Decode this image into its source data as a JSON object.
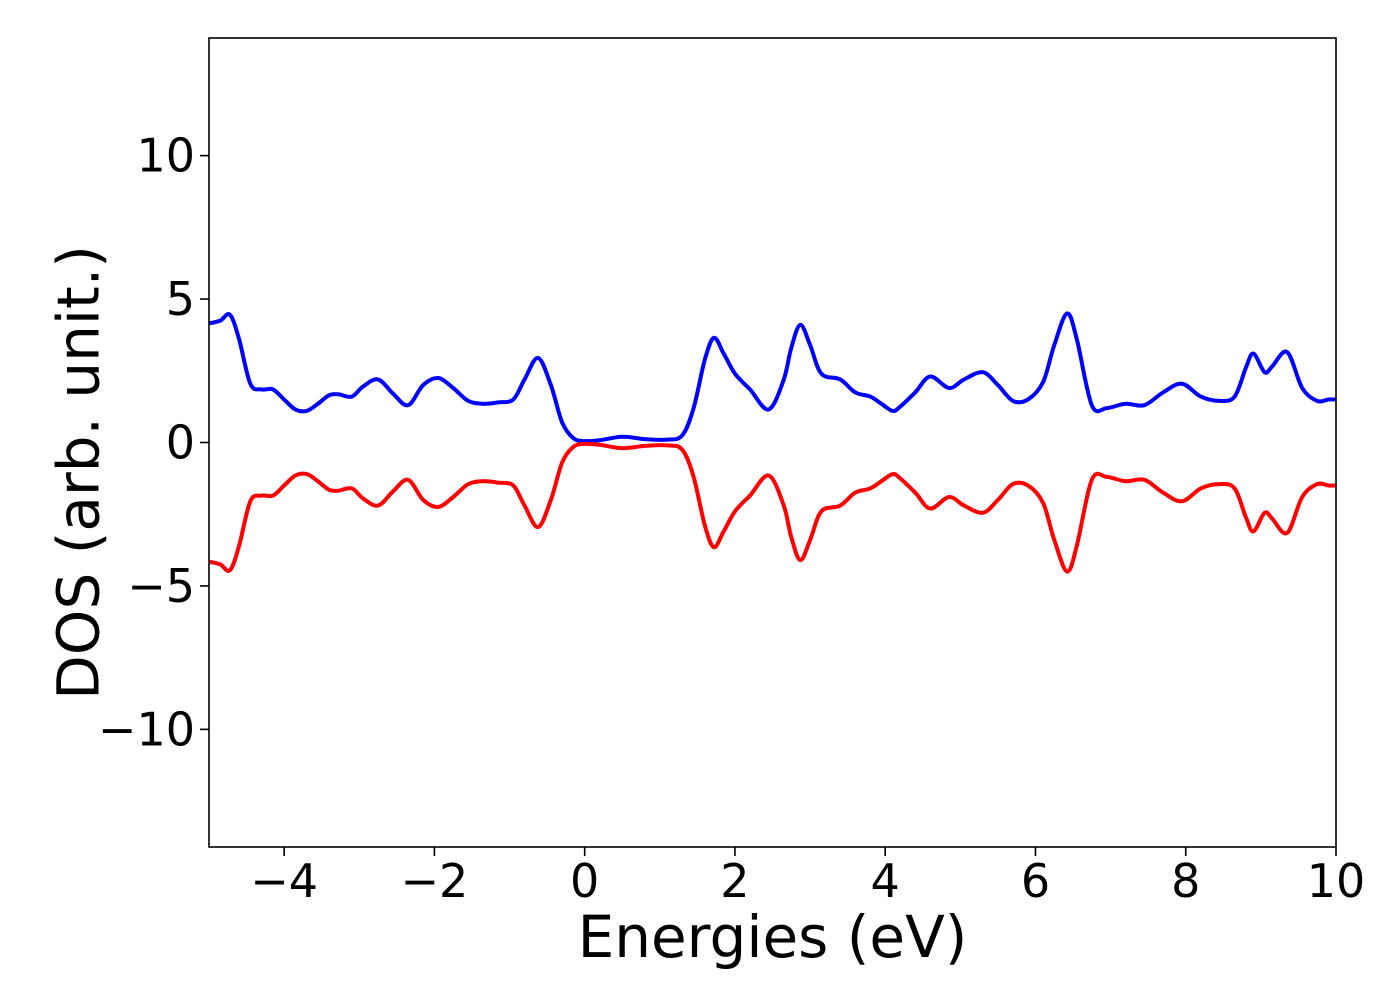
{
  "chart_data": {
    "type": "line",
    "title": "",
    "xlabel": "Energies (eV)",
    "ylabel": "DOS (arb. unit.)",
    "xlim": [
      -5,
      10
    ],
    "ylim": [
      -14.1,
      14.1
    ],
    "grid": false,
    "legend": "none",
    "xticks": [
      -4,
      -2,
      0,
      2,
      4,
      6,
      8,
      10
    ],
    "xtick_labels": [
      "−4",
      "−2",
      "0",
      "2",
      "4",
      "6",
      "8",
      "10"
    ],
    "yticks": [
      -10,
      -5,
      0,
      5,
      10
    ],
    "ytick_labels": [
      "−10",
      "−5",
      "0",
      "5",
      "10"
    ],
    "series": [
      {
        "color": "#0000ff",
        "x": [
          -5.0,
          -4.85,
          -4.72,
          -4.6,
          -4.45,
          -4.3,
          -4.15,
          -4.0,
          -3.85,
          -3.7,
          -3.55,
          -3.4,
          -3.28,
          -3.1,
          -2.95,
          -2.75,
          -2.55,
          -2.35,
          -2.15,
          -1.95,
          -1.75,
          -1.55,
          -1.35,
          -1.15,
          -0.95,
          -0.8,
          -0.62,
          -0.45,
          -0.3,
          -0.15,
          0.0,
          0.2,
          0.5,
          0.8,
          1.1,
          1.3,
          1.45,
          1.6,
          1.72,
          1.85,
          2.0,
          2.2,
          2.45,
          2.65,
          2.75,
          2.87,
          3.0,
          3.15,
          3.4,
          3.6,
          3.8,
          3.95,
          4.1,
          4.2,
          4.4,
          4.6,
          4.85,
          5.05,
          5.3,
          5.5,
          5.7,
          5.9,
          6.1,
          6.25,
          6.42,
          6.55,
          6.75,
          6.95,
          7.2,
          7.45,
          7.7,
          7.95,
          8.2,
          8.45,
          8.65,
          8.8,
          8.9,
          9.05,
          9.15,
          9.35,
          9.55,
          9.75,
          9.9,
          10.0
        ],
        "y": [
          4.15,
          4.25,
          4.45,
          3.6,
          2.05,
          1.85,
          1.85,
          1.5,
          1.15,
          1.1,
          1.35,
          1.65,
          1.68,
          1.6,
          1.95,
          2.2,
          1.7,
          1.3,
          2.0,
          2.25,
          1.9,
          1.45,
          1.35,
          1.4,
          1.5,
          2.2,
          2.95,
          2.0,
          0.7,
          0.15,
          0.05,
          0.08,
          0.2,
          0.12,
          0.1,
          0.25,
          1.2,
          2.9,
          3.65,
          3.1,
          2.4,
          1.85,
          1.15,
          2.2,
          3.3,
          4.1,
          3.4,
          2.4,
          2.2,
          1.75,
          1.6,
          1.35,
          1.1,
          1.25,
          1.75,
          2.3,
          1.9,
          2.2,
          2.45,
          2.0,
          1.45,
          1.5,
          2.1,
          3.4,
          4.5,
          3.6,
          1.3,
          1.2,
          1.35,
          1.3,
          1.75,
          2.05,
          1.6,
          1.45,
          1.6,
          2.6,
          3.1,
          2.45,
          2.65,
          3.15,
          1.9,
          1.45,
          1.5,
          1.5
        ]
      },
      {
        "color": "#ff0000",
        "x": [
          -5.0,
          -4.85,
          -4.72,
          -4.6,
          -4.45,
          -4.3,
          -4.15,
          -4.0,
          -3.85,
          -3.7,
          -3.55,
          -3.4,
          -3.28,
          -3.1,
          -2.95,
          -2.75,
          -2.55,
          -2.35,
          -2.15,
          -1.95,
          -1.75,
          -1.55,
          -1.35,
          -1.15,
          -0.95,
          -0.8,
          -0.62,
          -0.45,
          -0.3,
          -0.15,
          0.0,
          0.2,
          0.5,
          0.8,
          1.1,
          1.3,
          1.45,
          1.6,
          1.72,
          1.85,
          2.0,
          2.2,
          2.45,
          2.65,
          2.75,
          2.87,
          3.0,
          3.15,
          3.4,
          3.6,
          3.8,
          3.95,
          4.1,
          4.2,
          4.4,
          4.6,
          4.85,
          5.05,
          5.3,
          5.5,
          5.7,
          5.9,
          6.1,
          6.25,
          6.42,
          6.55,
          6.75,
          6.95,
          7.2,
          7.45,
          7.7,
          7.95,
          8.2,
          8.45,
          8.65,
          8.8,
          8.9,
          9.05,
          9.15,
          9.35,
          9.55,
          9.75,
          9.9,
          10.0
        ],
        "y": [
          -4.15,
          -4.25,
          -4.45,
          -3.6,
          -2.05,
          -1.85,
          -1.85,
          -1.5,
          -1.15,
          -1.1,
          -1.35,
          -1.65,
          -1.68,
          -1.6,
          -1.95,
          -2.2,
          -1.7,
          -1.3,
          -2.0,
          -2.25,
          -1.9,
          -1.45,
          -1.35,
          -1.4,
          -1.5,
          -2.2,
          -2.95,
          -2.0,
          -0.7,
          -0.15,
          -0.05,
          -0.08,
          -0.2,
          -0.12,
          -0.1,
          -0.25,
          -1.2,
          -2.9,
          -3.65,
          -3.1,
          -2.4,
          -1.85,
          -1.15,
          -2.2,
          -3.3,
          -4.1,
          -3.4,
          -2.4,
          -2.2,
          -1.75,
          -1.6,
          -1.35,
          -1.1,
          -1.25,
          -1.75,
          -2.3,
          -1.9,
          -2.2,
          -2.45,
          -2.0,
          -1.45,
          -1.5,
          -2.1,
          -3.4,
          -4.5,
          -3.6,
          -1.3,
          -1.2,
          -1.35,
          -1.3,
          -1.75,
          -2.05,
          -1.6,
          -1.45,
          -1.6,
          -2.6,
          -3.1,
          -2.45,
          -2.65,
          -3.15,
          -1.9,
          -1.45,
          -1.5,
          -1.5
        ]
      }
    ]
  }
}
